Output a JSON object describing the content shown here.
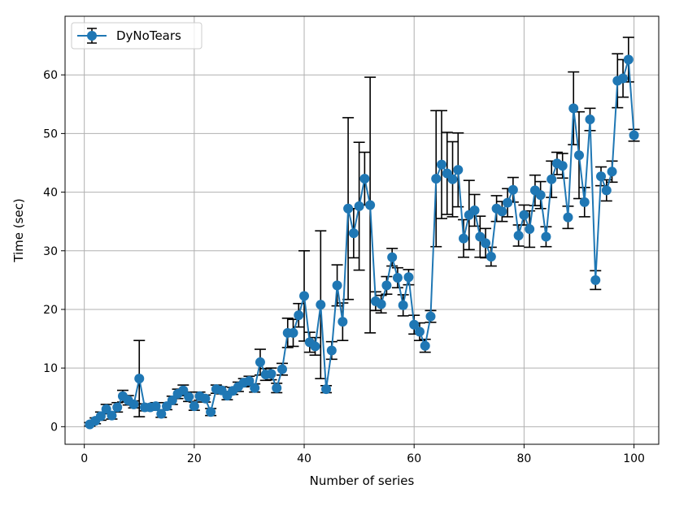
{
  "chart_data": {
    "type": "line",
    "title": "",
    "xlabel": "Number of series",
    "ylabel": "Time (sec)",
    "xlim": [
      -3.5,
      104.5
    ],
    "ylim": [
      -3,
      70
    ],
    "xticks": [
      0,
      20,
      40,
      60,
      80,
      100
    ],
    "yticks": [
      0,
      10,
      20,
      30,
      40,
      50,
      60
    ],
    "grid": true,
    "legend": "top-left",
    "series": [
      {
        "name": "DyNoTears",
        "color": "#1f77b4",
        "error_color": "#000000",
        "marker": "circle",
        "x": [
          1,
          2,
          3,
          4,
          5,
          6,
          7,
          8,
          9,
          10,
          11,
          12,
          13,
          14,
          15,
          16,
          17,
          18,
          19,
          20,
          21,
          22,
          23,
          24,
          25,
          26,
          27,
          28,
          29,
          30,
          31,
          32,
          33,
          34,
          35,
          36,
          37,
          38,
          39,
          40,
          41,
          42,
          43,
          44,
          45,
          46,
          47,
          48,
          49,
          50,
          51,
          52,
          53,
          54,
          55,
          56,
          57,
          58,
          59,
          60,
          61,
          62,
          63,
          64,
          65,
          66,
          67,
          68,
          69,
          70,
          71,
          72,
          73,
          74,
          75,
          76,
          77,
          78,
          79,
          80,
          81,
          82,
          83,
          84,
          85,
          86,
          87,
          88,
          89,
          90,
          91,
          92,
          93,
          94,
          95,
          96,
          97,
          98,
          99,
          100
        ],
        "y": [
          0.4,
          1.0,
          1.8,
          3.0,
          1.9,
          3.3,
          5.2,
          4.5,
          3.8,
          8.2,
          3.3,
          3.3,
          3.5,
          2.2,
          3.5,
          4.5,
          5.6,
          6.2,
          5.1,
          3.5,
          5.2,
          4.8,
          2.5,
          6.4,
          6.2,
          5.3,
          6.1,
          6.8,
          7.5,
          7.8,
          6.6,
          11.0,
          8.9,
          9.0,
          6.6,
          9.8,
          16.0,
          16.0,
          19.0,
          22.3,
          14.4,
          13.7,
          20.8,
          6.4,
          13.0,
          24.1,
          17.9,
          37.2,
          33.0,
          37.6,
          42.3,
          37.8,
          21.4,
          20.9,
          24.1,
          28.9,
          25.4,
          20.7,
          25.5,
          17.4,
          16.2,
          13.8,
          18.8,
          42.3,
          44.7,
          43.2,
          42.2,
          43.8,
          32.1,
          36.1,
          36.9,
          32.4,
          31.3,
          29.0,
          37.2,
          36.7,
          38.2,
          40.4,
          32.6,
          36.1,
          33.7,
          40.3,
          39.5,
          32.4,
          42.2,
          44.9,
          44.5,
          35.7,
          54.3,
          46.3,
          38.3,
          52.4,
          25.0,
          42.7,
          40.3,
          43.5,
          59.0,
          59.4,
          62.6,
          49.7
        ],
        "err": [
          0.3,
          0.5,
          0.7,
          0.8,
          0.6,
          0.8,
          1.0,
          0.8,
          0.6,
          6.5,
          0.6,
          0.5,
          0.6,
          0.6,
          0.6,
          0.7,
          0.8,
          0.9,
          0.8,
          0.7,
          0.7,
          0.6,
          0.6,
          0.7,
          0.6,
          0.7,
          0.6,
          0.8,
          0.7,
          0.8,
          0.7,
          2.2,
          1.0,
          1.0,
          0.8,
          1.0,
          2.5,
          2.3,
          2.0,
          7.7,
          1.7,
          1.5,
          12.6,
          0.6,
          1.5,
          3.5,
          3.2,
          15.5,
          4.2,
          10.9,
          4.5,
          21.8,
          1.6,
          1.5,
          1.5,
          1.5,
          1.7,
          1.8,
          1.3,
          1.6,
          1.5,
          1.1,
          1.0,
          11.6,
          9.2,
          7.0,
          6.4,
          6.3,
          3.2,
          5.9,
          2.7,
          3.5,
          2.5,
          1.6,
          2.2,
          1.7,
          2.4,
          2.1,
          1.8,
          1.7,
          3.1,
          2.6,
          2.3,
          1.7,
          3.1,
          1.9,
          2.1,
          1.9,
          6.2,
          7.4,
          2.5,
          1.9,
          1.6,
          1.6,
          1.8,
          1.8,
          4.6,
          3.2,
          3.8,
          1.0
        ]
      }
    ]
  }
}
